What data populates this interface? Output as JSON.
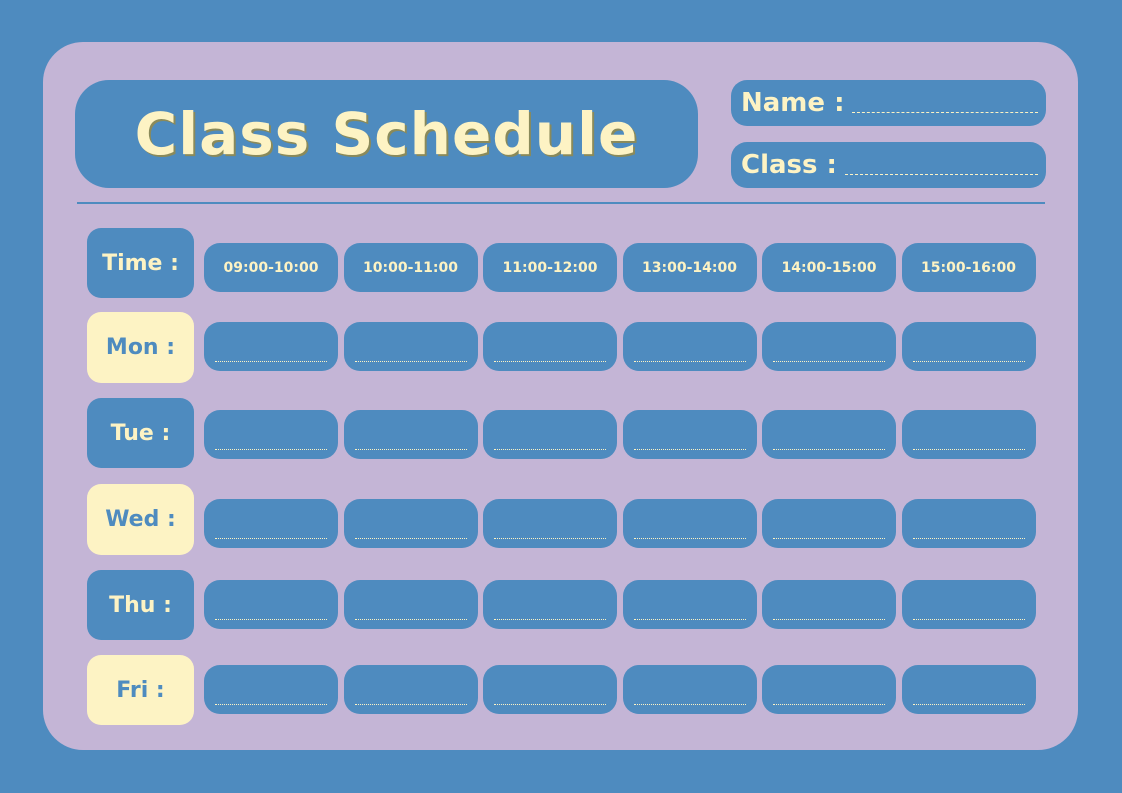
{
  "title": "Class Schedule",
  "fields": {
    "name_label": "Name :",
    "class_label": "Class :"
  },
  "time_label": "Time :",
  "time_slots": [
    "09:00-10:00",
    "10:00-11:00",
    "11:00-12:00",
    "13:00-14:00",
    "14:00-15:00",
    "15:00-16:00"
  ],
  "days": [
    {
      "label": "Mon :",
      "style": "cream"
    },
    {
      "label": "Tue :",
      "style": "blue"
    },
    {
      "label": "Wed :",
      "style": "cream"
    },
    {
      "label": "Thu :",
      "style": "blue"
    },
    {
      "label": "Fri :",
      "style": "cream"
    }
  ],
  "colors": {
    "background": "#4e8bbf",
    "card": "#c4b5d6",
    "accent": "#fdf3c4"
  }
}
